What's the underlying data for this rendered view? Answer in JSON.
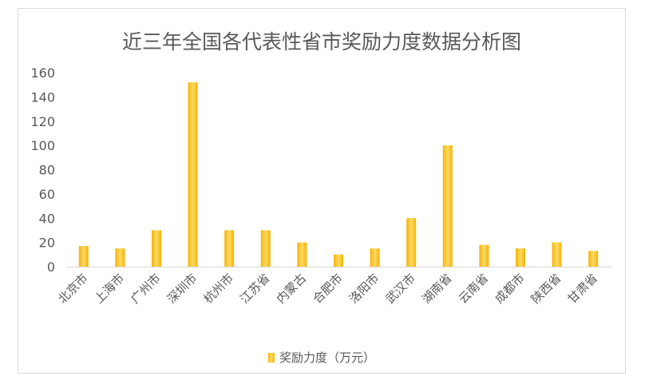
{
  "chart_data": {
    "type": "bar",
    "title": "近三年全国各代表性省市奖励力度数据分析图",
    "categories": [
      "北京市",
      "上海市",
      "广州市",
      "深圳市",
      "杭州市",
      "江苏省",
      "内蒙古",
      "合肥市",
      "洛阳市",
      "武汉市",
      "湖南省",
      "云南省",
      "成都市",
      "陕西省",
      "甘肃省"
    ],
    "series": [
      {
        "name": "奖励力度（万元）",
        "values": [
          17,
          15,
          30,
          152,
          30,
          30,
          20,
          10,
          15,
          40,
          100,
          18,
          15,
          20,
          13
        ]
      }
    ],
    "ylim": [
      0,
      160
    ],
    "yticks": [
      0,
      20,
      40,
      60,
      80,
      100,
      120,
      140,
      160
    ],
    "grid": false,
    "legend": "bottom",
    "colors": {
      "bar": "#f4b400",
      "bar_light": "#ffd966"
    }
  }
}
